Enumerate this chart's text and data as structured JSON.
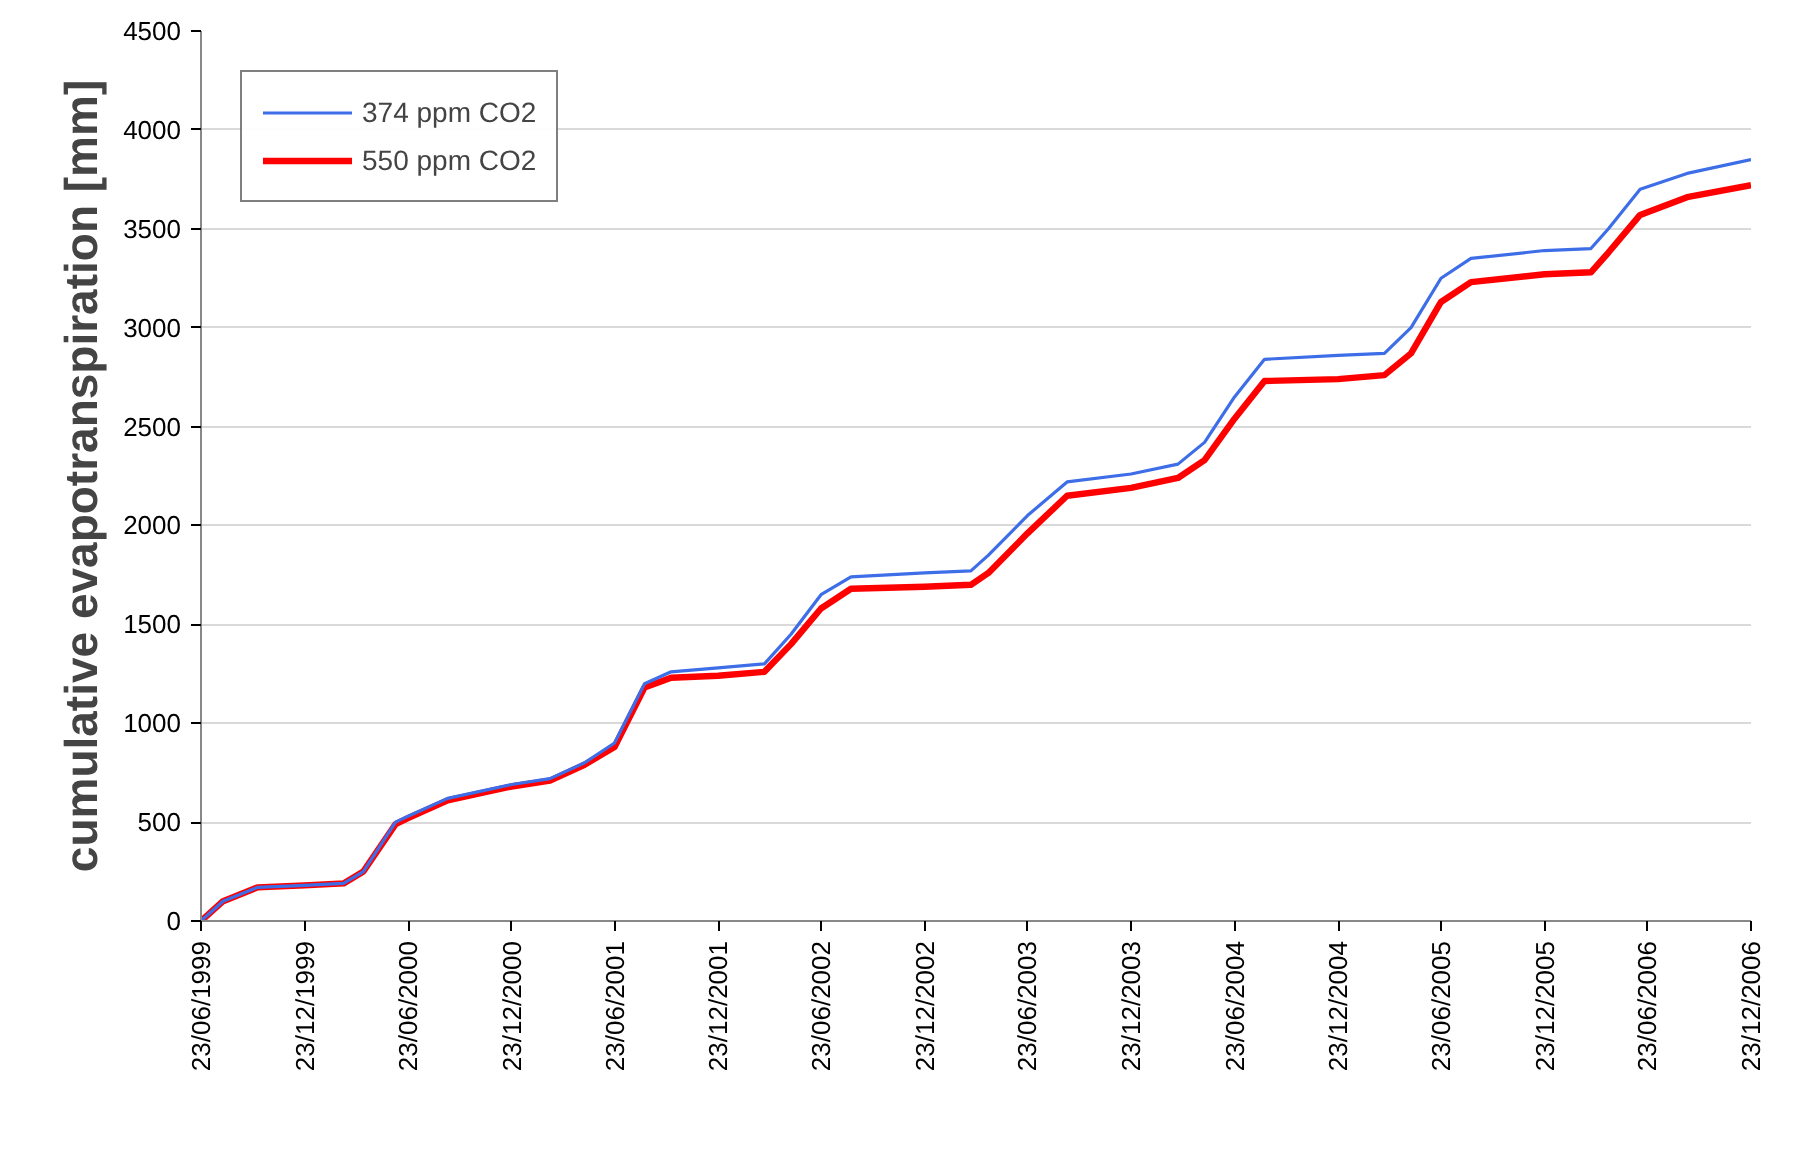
{
  "chart_data": {
    "type": "line",
    "ylabel": "cumulative evapotranspiration [mm]",
    "x": [
      "1999-06-23",
      "1999-08-01",
      "1999-10-01",
      "1999-12-23",
      "2000-03-01",
      "2000-04-05",
      "2000-06-01",
      "2000-06-23",
      "2000-09-01",
      "2000-12-23",
      "2001-03-01",
      "2001-05-01",
      "2001-06-23",
      "2001-08-15",
      "2001-10-01",
      "2001-12-23",
      "2002-03-15",
      "2002-05-01",
      "2002-06-23",
      "2002-08-15",
      "2002-12-23",
      "2003-03-15",
      "2003-04-15",
      "2003-06-23",
      "2003-09-01",
      "2003-12-23",
      "2004-03-15",
      "2004-05-01",
      "2004-06-23",
      "2004-08-15",
      "2004-12-23",
      "2005-03-15",
      "2005-05-01",
      "2005-06-23",
      "2005-08-15",
      "2005-12-23",
      "2006-03-15",
      "2006-04-15",
      "2006-06-10",
      "2006-09-01",
      "2006-12-23"
    ],
    "series": [
      {
        "name": "374 ppm CO2",
        "color": "#3d6ee8",
        "values": [
          0,
          100,
          170,
          180,
          190,
          250,
          500,
          530,
          620,
          690,
          720,
          800,
          900,
          1200,
          1260,
          1280,
          1300,
          1450,
          1650,
          1740,
          1760,
          1770,
          1850,
          2050,
          2220,
          2260,
          2310,
          2420,
          2650,
          2840,
          2860,
          2870,
          3000,
          3250,
          3350,
          3390,
          3400,
          3500,
          3700,
          3780,
          3850
        ]
      },
      {
        "name": "550 ppm CO2",
        "color": "#ff0000",
        "values": [
          0,
          100,
          170,
          180,
          190,
          250,
          490,
          520,
          610,
          680,
          710,
          790,
          880,
          1180,
          1230,
          1240,
          1260,
          1400,
          1580,
          1680,
          1690,
          1700,
          1760,
          1960,
          2150,
          2190,
          2240,
          2330,
          2540,
          2730,
          2740,
          2760,
          2870,
          3130,
          3230,
          3270,
          3280,
          3380,
          3570,
          3660,
          3720
        ]
      }
    ],
    "xlim": [
      "1999-06-23",
      "2006-12-23"
    ],
    "xticks": [
      {
        "value": "1999-06-23",
        "label": "23/06/1999"
      },
      {
        "value": "1999-12-23",
        "label": "23/12/1999"
      },
      {
        "value": "2000-06-23",
        "label": "23/06/2000"
      },
      {
        "value": "2000-12-23",
        "label": "23/12/2000"
      },
      {
        "value": "2001-06-23",
        "label": "23/06/2001"
      },
      {
        "value": "2001-12-23",
        "label": "23/12/2001"
      },
      {
        "value": "2002-06-23",
        "label": "23/06/2002"
      },
      {
        "value": "2002-12-23",
        "label": "23/12/2002"
      },
      {
        "value": "2003-06-23",
        "label": "23/06/2003"
      },
      {
        "value": "2003-12-23",
        "label": "23/12/2003"
      },
      {
        "value": "2004-06-23",
        "label": "23/06/2004"
      },
      {
        "value": "2004-12-23",
        "label": "23/12/2004"
      },
      {
        "value": "2005-06-23",
        "label": "23/06/2005"
      },
      {
        "value": "2005-12-23",
        "label": "23/12/2005"
      },
      {
        "value": "2006-06-23",
        "label": "23/06/2006"
      },
      {
        "value": "2006-12-23",
        "label": "23/12/2006"
      }
    ],
    "ylim": [
      0,
      4500
    ],
    "yticks": [
      0,
      500,
      1000,
      1500,
      2000,
      2500,
      3000,
      3500,
      4000,
      4500
    ],
    "grid": "y",
    "legend": "top left",
    "marker": "none",
    "line_style": "solid"
  }
}
